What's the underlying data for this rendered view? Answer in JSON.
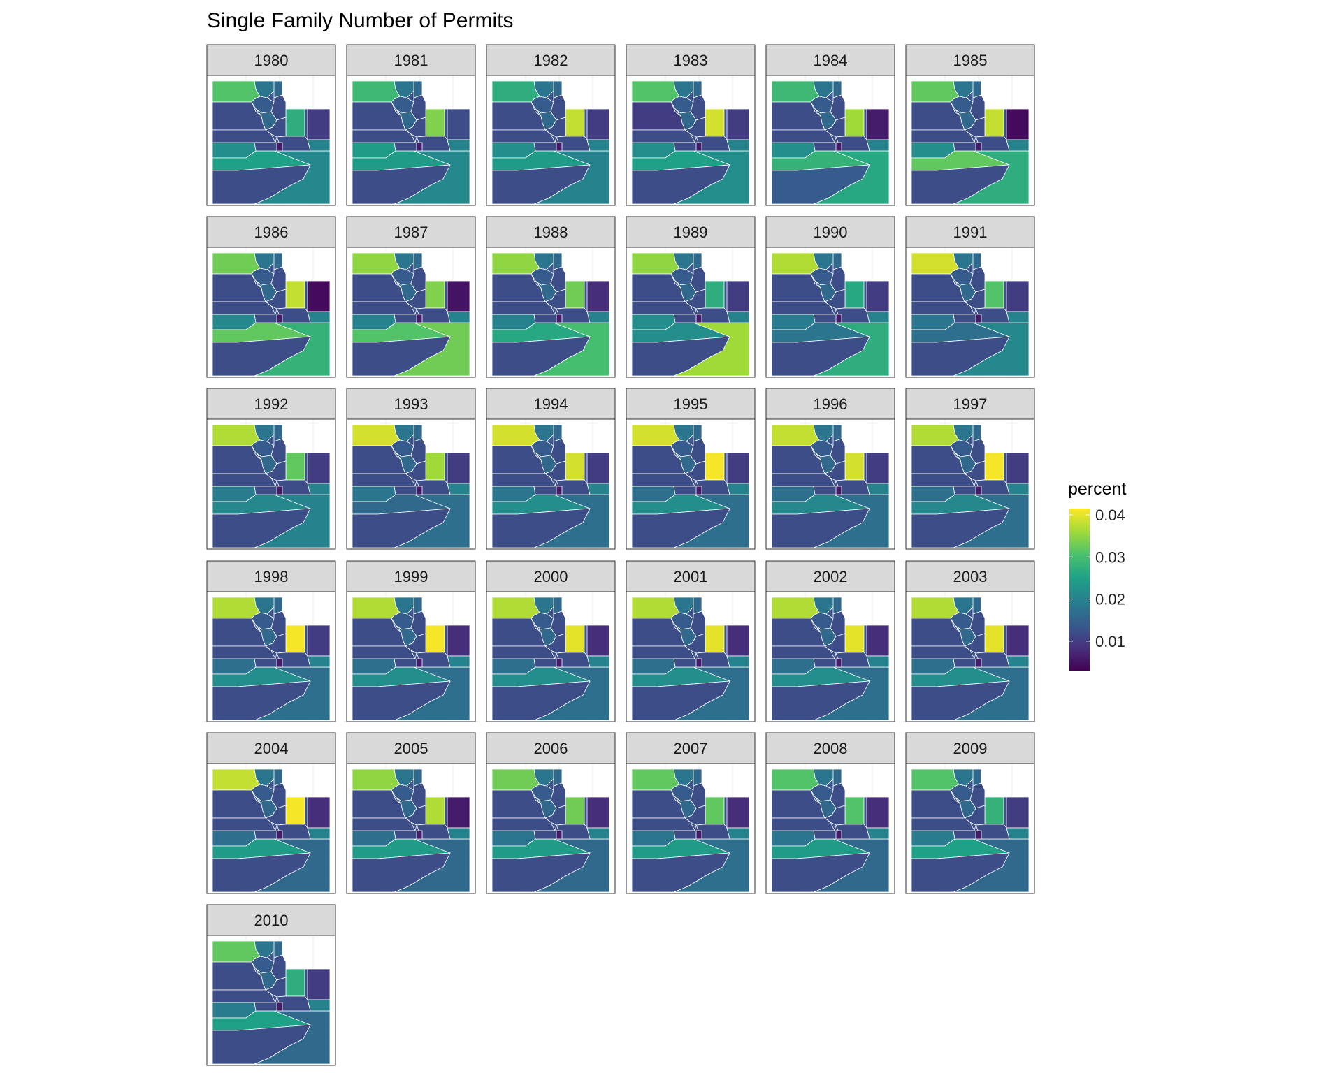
{
  "title": "Single Family Number of Permits",
  "legend": {
    "title": "percent",
    "ticks": [
      "0.04",
      "0.03",
      "0.02",
      "0.01"
    ],
    "tick_values": [
      0.04,
      0.03,
      0.02,
      0.01
    ],
    "range": [
      0.003,
      0.0415
    ],
    "palette": [
      "#440154",
      "#46327e",
      "#365c8d",
      "#277f8e",
      "#1fa187",
      "#4ac16d",
      "#a0da39",
      "#fde725"
    ],
    "placement": "right"
  },
  "panels": [
    {
      "year": "1980",
      "level": [
        0.031,
        0.027,
        0.012,
        0.01,
        0.022,
        0.025,
        0.021,
        0.012
      ]
    },
    {
      "year": "1981",
      "level": [
        0.029,
        0.034,
        0.012,
        0.012,
        0.024,
        0.024,
        0.021,
        0.012
      ]
    },
    {
      "year": "1982",
      "level": [
        0.027,
        0.038,
        0.012,
        0.01,
        0.022,
        0.024,
        0.02,
        0.012
      ]
    },
    {
      "year": "1983",
      "level": [
        0.031,
        0.039,
        0.01,
        0.01,
        0.022,
        0.025,
        0.022,
        0.012
      ]
    },
    {
      "year": "1984",
      "level": [
        0.029,
        0.036,
        0.012,
        0.006,
        0.022,
        0.028,
        0.026,
        0.014
      ]
    },
    {
      "year": "1985",
      "level": [
        0.032,
        0.038,
        0.012,
        0.004,
        0.022,
        0.032,
        0.027,
        0.012
      ]
    },
    {
      "year": "1986",
      "level": [
        0.033,
        0.038,
        0.012,
        0.004,
        0.021,
        0.032,
        0.028,
        0.012
      ]
    },
    {
      "year": "1987",
      "level": [
        0.035,
        0.034,
        0.012,
        0.005,
        0.02,
        0.031,
        0.033,
        0.012
      ]
    },
    {
      "year": "1988",
      "level": [
        0.035,
        0.033,
        0.012,
        0.008,
        0.02,
        0.026,
        0.03,
        0.012
      ]
    },
    {
      "year": "1989",
      "level": [
        0.035,
        0.027,
        0.012,
        0.01,
        0.022,
        0.022,
        0.036,
        0.012
      ]
    },
    {
      "year": "1990",
      "level": [
        0.037,
        0.026,
        0.012,
        0.01,
        0.019,
        0.018,
        0.027,
        0.012
      ]
    },
    {
      "year": "1991",
      "level": [
        0.039,
        0.031,
        0.012,
        0.01,
        0.018,
        0.017,
        0.021,
        0.012
      ]
    },
    {
      "year": "1992",
      "level": [
        0.037,
        0.032,
        0.012,
        0.01,
        0.019,
        0.021,
        0.02,
        0.012
      ]
    },
    {
      "year": "1993",
      "level": [
        0.039,
        0.036,
        0.012,
        0.01,
        0.018,
        0.016,
        0.017,
        0.012
      ]
    },
    {
      "year": "1994",
      "level": [
        0.039,
        0.039,
        0.012,
        0.01,
        0.018,
        0.022,
        0.017,
        0.012
      ]
    },
    {
      "year": "1995",
      "level": [
        0.039,
        0.041,
        0.012,
        0.01,
        0.017,
        0.022,
        0.017,
        0.012
      ]
    },
    {
      "year": "1996",
      "level": [
        0.038,
        0.039,
        0.012,
        0.01,
        0.017,
        0.021,
        0.017,
        0.012
      ]
    },
    {
      "year": "1997",
      "level": [
        0.037,
        0.041,
        0.012,
        0.01,
        0.017,
        0.021,
        0.017,
        0.012
      ]
    },
    {
      "year": "1998",
      "level": [
        0.037,
        0.041,
        0.012,
        0.01,
        0.017,
        0.022,
        0.017,
        0.012
      ]
    },
    {
      "year": "1999",
      "level": [
        0.037,
        0.041,
        0.012,
        0.008,
        0.017,
        0.022,
        0.017,
        0.012
      ]
    },
    {
      "year": "2000",
      "level": [
        0.037,
        0.04,
        0.012,
        0.008,
        0.017,
        0.022,
        0.017,
        0.012
      ]
    },
    {
      "year": "2001",
      "level": [
        0.037,
        0.04,
        0.012,
        0.008,
        0.017,
        0.022,
        0.017,
        0.012
      ]
    },
    {
      "year": "2002",
      "level": [
        0.037,
        0.04,
        0.012,
        0.008,
        0.017,
        0.022,
        0.017,
        0.012
      ]
    },
    {
      "year": "2003",
      "level": [
        0.037,
        0.04,
        0.012,
        0.008,
        0.017,
        0.022,
        0.017,
        0.012
      ]
    },
    {
      "year": "2004",
      "level": [
        0.038,
        0.041,
        0.012,
        0.008,
        0.017,
        0.024,
        0.016,
        0.012
      ]
    },
    {
      "year": "2005",
      "level": [
        0.035,
        0.037,
        0.012,
        0.006,
        0.017,
        0.024,
        0.016,
        0.012
      ]
    },
    {
      "year": "2006",
      "level": [
        0.033,
        0.033,
        0.012,
        0.008,
        0.018,
        0.024,
        0.016,
        0.012
      ]
    },
    {
      "year": "2007",
      "level": [
        0.032,
        0.032,
        0.012,
        0.008,
        0.018,
        0.024,
        0.017,
        0.012
      ]
    },
    {
      "year": "2008",
      "level": [
        0.031,
        0.031,
        0.012,
        0.008,
        0.018,
        0.024,
        0.016,
        0.012
      ]
    },
    {
      "year": "2009",
      "level": [
        0.031,
        0.028,
        0.012,
        0.01,
        0.019,
        0.025,
        0.016,
        0.012
      ]
    },
    {
      "year": "2010",
      "level": [
        0.032,
        0.027,
        0.012,
        0.01,
        0.019,
        0.025,
        0.016,
        0.012
      ]
    }
  ]
}
